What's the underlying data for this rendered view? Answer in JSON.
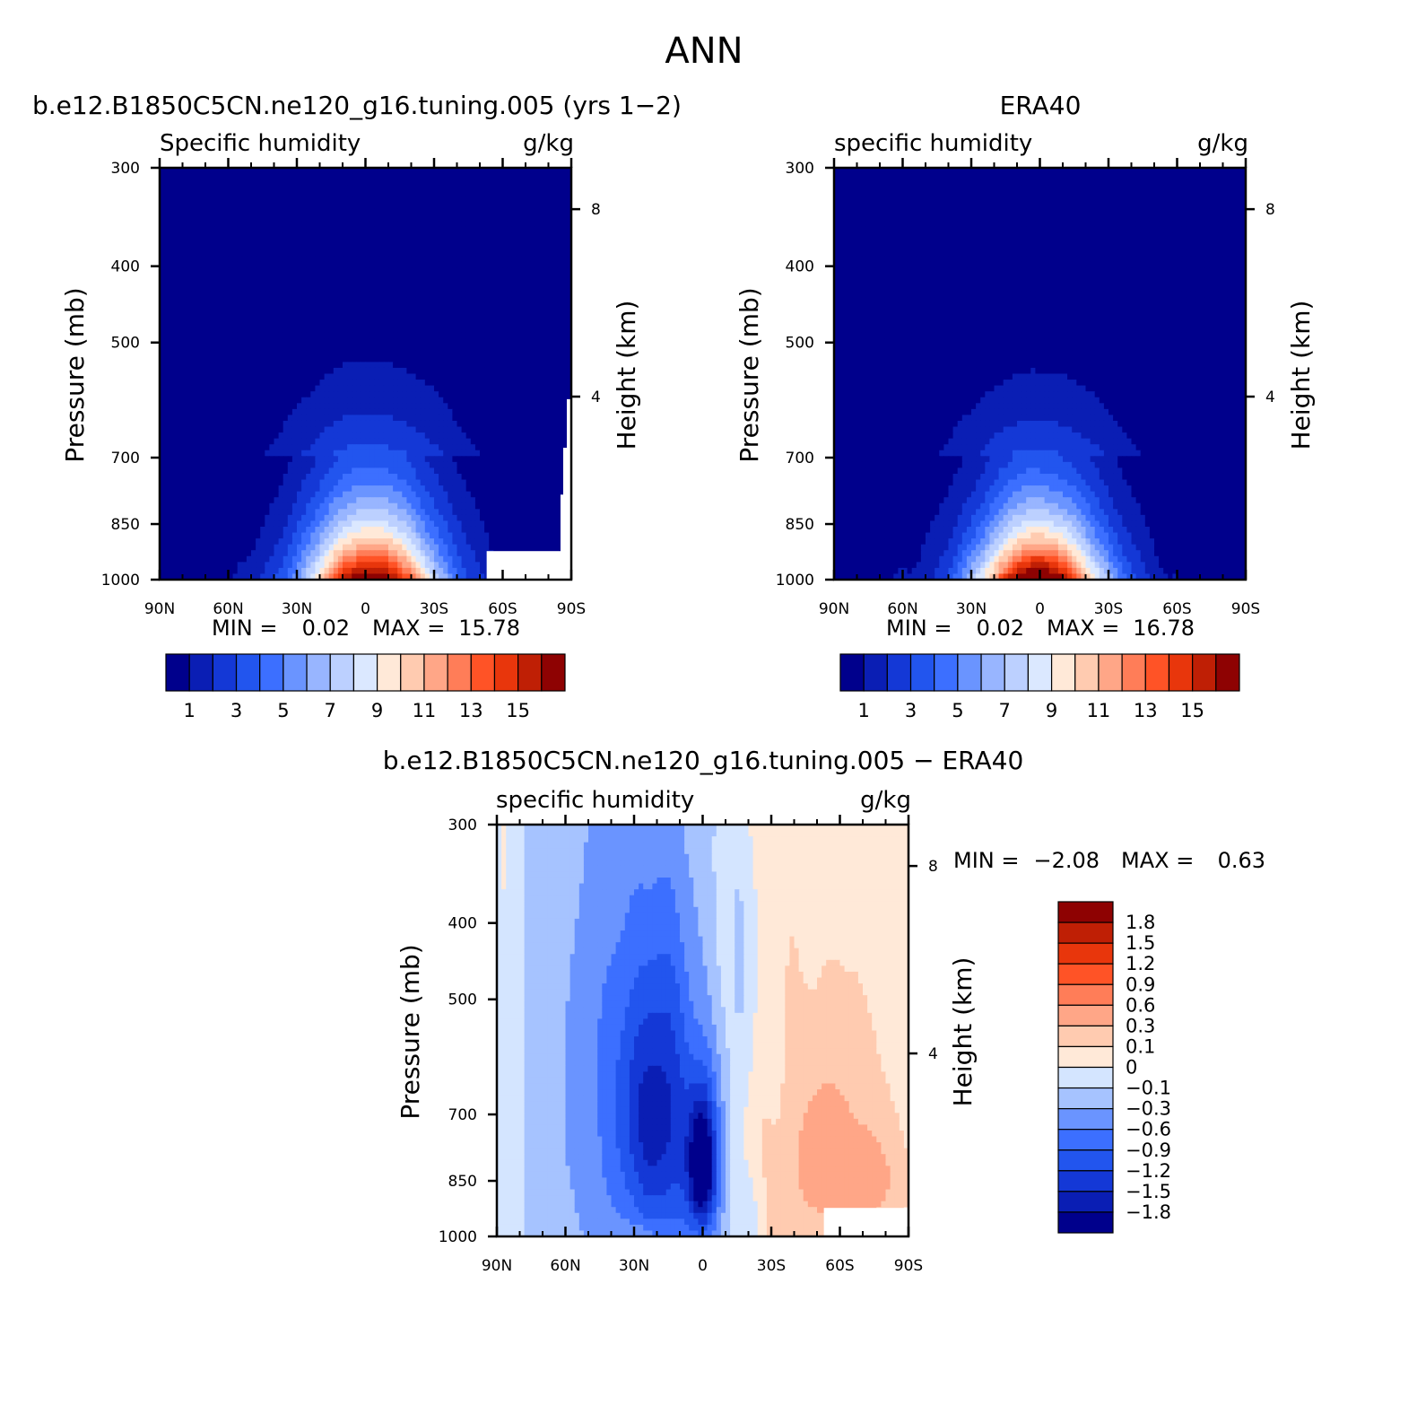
{
  "page": {
    "title": "ANN"
  },
  "scales": {
    "abs": {
      "colors": [
        "#00008c",
        "#0a1eb4",
        "#1438d6",
        "#2255ee",
        "#3c6fff",
        "#6a94ff",
        "#98b5ff",
        "#bcd0ff",
        "#dbe8ff",
        "#ffe9d8",
        "#ffcbb0",
        "#ffa687",
        "#ff7d58",
        "#ff5326",
        "#e8360c",
        "#bf1f05",
        "#8e0202"
      ],
      "tick_labels": [
        "1",
        "3",
        "5",
        "7",
        "9",
        "11",
        "13",
        "15"
      ]
    },
    "diff": {
      "colors": [
        "#00008c",
        "#0a1eb4",
        "#1438d6",
        "#2255ee",
        "#3c6fff",
        "#6a94ff",
        "#a6c3ff",
        "#d4e5ff",
        "#ffe9d8",
        "#ffcbb0",
        "#ffa687",
        "#ff7d58",
        "#ff5326",
        "#e8360c",
        "#bf1f05",
        "#8e0202"
      ],
      "labels": [
        "-1.8",
        "-1.5",
        "-1.2",
        "-0.9",
        "-0.6",
        "-0.3",
        "-0.1",
        "0",
        "0.1",
        "0.3",
        "0.6",
        "0.9",
        "1.2",
        "1.5",
        "1.8"
      ]
    }
  },
  "panels": [
    {
      "title": "b.e12.B1850C5CN.ne120_g16.tuning.005 (yrs 1−2)",
      "left_label": "Specific humidity",
      "units": "g/kg",
      "ylabel": "Pressure (mb)",
      "ylabel_right": "Height (km)",
      "min_label": "MIN =",
      "min_value": "0.02",
      "max_label": "MAX =",
      "max_value": "15.78"
    },
    {
      "title": "ERA40",
      "left_label": "specific humidity",
      "units": "g/kg",
      "ylabel": "Pressure (mb)",
      "ylabel_right": "Height (km)",
      "min_label": "MIN =",
      "min_value": "0.02",
      "max_label": "MAX =",
      "max_value": "16.78"
    },
    {
      "title": "b.e12.B1850C5CN.ne120_g16.tuning.005 − ERA40",
      "left_label": "specific humidity",
      "units": "g/kg",
      "ylabel": "Pressure (mb)",
      "ylabel_right": "Height (km)",
      "min_label": "MIN =",
      "min_value": "−2.08",
      "max_label": "MAX =",
      "max_value": "0.63"
    }
  ],
  "chart_data": [
    {
      "type": "heatmap",
      "title": "b.e12.B1850C5CN.ne120_g16.tuning.005 (yrs 1−2)",
      "variable": "Specific humidity",
      "units": "g/kg",
      "ylabel": "Pressure (mb)",
      "ylabel_right": "Height (km)",
      "x_ticks": [
        "90N",
        "60N",
        "30N",
        "0",
        "30S",
        "60S",
        "90S"
      ],
      "x_range": [
        90,
        -90
      ],
      "y_ticks": [
        "300",
        "400",
        "500",
        "700",
        "850",
        "1000"
      ],
      "y_range": [
        1000,
        300
      ],
      "y_scale": "log",
      "right_ticks": [
        "8",
        "4"
      ],
      "contour_levels": [
        0,
        1,
        2,
        3,
        4,
        5,
        6,
        7,
        8,
        9,
        10,
        11,
        12,
        13,
        14,
        15,
        16
      ],
      "lowest_level_colored": 0,
      "peak": 15.4,
      "peak_lat": -2,
      "peak_width": 20,
      "asymmetry": 2,
      "drop_rate": 1.4,
      "lower_mask": true,
      "min": 0.02,
      "max": 15.78
    },
    {
      "type": "heatmap",
      "title": "ERA40",
      "variable": "specific humidity",
      "units": "g/kg",
      "ylabel": "Pressure (mb)",
      "ylabel_right": "Height (km)",
      "x_ticks": [
        "90N",
        "60N",
        "30N",
        "0",
        "30S",
        "60S",
        "90S"
      ],
      "x_range": [
        90,
        -90
      ],
      "y_ticks": [
        "300",
        "400",
        "500",
        "700",
        "850",
        "1000"
      ],
      "y_range": [
        1000,
        300
      ],
      "y_scale": "log",
      "right_ticks": [
        "8",
        "4"
      ],
      "contour_levels": [
        0,
        1,
        2,
        3,
        4,
        5,
        6,
        7,
        8,
        9,
        10,
        11,
        12,
        13,
        14,
        15,
        16
      ],
      "lowest_level_colored": 0,
      "peak": 16.4,
      "peak_lat": 0,
      "peak_width": 20,
      "asymmetry": 0,
      "drop_rate": 1.5,
      "lower_mask": false,
      "min": 0.02,
      "max": 16.78
    },
    {
      "type": "heatmap",
      "title": "b.e12.B1850C5CN.ne120_g16.tuning.005 − ERA40",
      "variable": "specific humidity",
      "units": "g/kg",
      "ylabel": "Pressure (mb)",
      "ylabel_right": "Height (km)",
      "x_ticks": [
        "90N",
        "60N",
        "30N",
        "0",
        "30S",
        "60S",
        "90S"
      ],
      "x_range": [
        90,
        -90
      ],
      "y_ticks": [
        "300",
        "400",
        "500",
        "700",
        "850",
        "1000"
      ],
      "y_range": [
        1000,
        300
      ],
      "y_scale": "log",
      "right_ticks": [
        "8",
        "4"
      ],
      "contour_levels": [
        -1.8,
        -1.5,
        -1.2,
        -0.9,
        -0.6,
        -0.3,
        -0.1,
        0,
        0.1,
        0.3,
        0.6,
        0.9,
        1.2,
        1.5,
        1.8
      ],
      "min": -2.08,
      "max": 0.63
    }
  ]
}
